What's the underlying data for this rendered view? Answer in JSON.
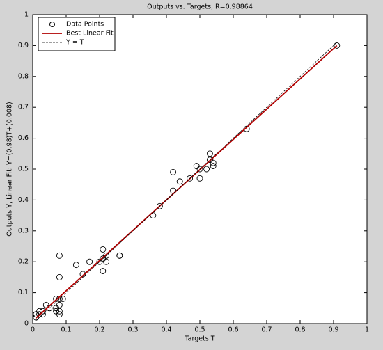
{
  "chart_data": {
    "type": "scatter",
    "title": "Outputs vs. Targets, R=0.98864",
    "x_label": "Targets T",
    "y_label": "Outputs Y,  Linear Fit: Y=(0.98)T+(0.008)",
    "xlim": [
      0,
      1
    ],
    "ylim": [
      0,
      1
    ],
    "xticks": [
      0,
      0.1,
      0.2,
      0.3,
      0.4,
      0.5,
      0.6,
      0.7,
      0.8,
      0.9,
      1
    ],
    "yticks": [
      0,
      0.1,
      0.2,
      0.3,
      0.4,
      0.5,
      0.6,
      0.7,
      0.8,
      0.9,
      1
    ],
    "legend": "top-left",
    "series": [
      {
        "name": "Data Points",
        "style": "markers",
        "color": "#000000",
        "x": [
          0.91,
          0.64,
          0.53,
          0.53,
          0.54,
          0.54,
          0.52,
          0.49,
          0.5,
          0.5,
          0.47,
          0.44,
          0.42,
          0.42,
          0.38,
          0.36,
          0.26,
          0.26,
          0.22,
          0.21,
          0.21,
          0.22,
          0.2,
          0.21,
          0.17,
          0.13,
          0.15,
          0.08,
          0.08,
          0.08,
          0.09,
          0.08,
          0.08,
          0.07,
          0.07,
          0.07,
          0.08,
          0.05,
          0.04,
          0.03,
          0.03,
          0.02,
          0.01,
          0.01,
          0.02,
          0.01
        ],
        "values": [
          0.9,
          0.63,
          0.55,
          0.53,
          0.52,
          0.51,
          0.5,
          0.51,
          0.5,
          0.47,
          0.47,
          0.46,
          0.49,
          0.43,
          0.38,
          0.35,
          0.22,
          0.22,
          0.22,
          0.24,
          0.21,
          0.2,
          0.2,
          0.17,
          0.2,
          0.19,
          0.16,
          0.22,
          0.15,
          0.08,
          0.08,
          0.06,
          0.04,
          0.08,
          0.05,
          0.04,
          0.03,
          0.05,
          0.06,
          0.04,
          0.03,
          0.04,
          0.03,
          0.03,
          0.03,
          0.02
        ]
      },
      {
        "name": "Best Linear Fit",
        "style": "line",
        "color": "#b00000",
        "x": [
          0.01,
          0.91
        ],
        "values": [
          0.0178,
          0.8998
        ]
      },
      {
        "name": "Y = T",
        "style": "dashed",
        "color": "#000000",
        "x": [
          0.01,
          0.91
        ],
        "values": [
          0.01,
          0.91
        ]
      }
    ]
  }
}
